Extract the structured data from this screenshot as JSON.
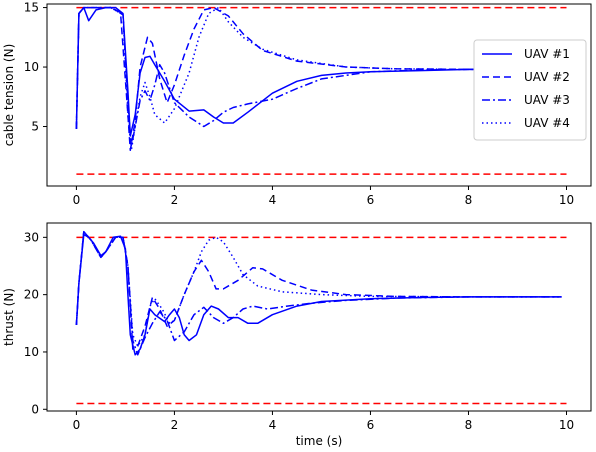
{
  "chart_data": [
    {
      "type": "line",
      "ylabel": "cable tension (N)",
      "xlabel": "",
      "xlim": [
        -0.6,
        10.5
      ],
      "ylim": [
        0,
        15.3
      ],
      "xticks": [
        "0",
        "2",
        "4",
        "6",
        "8",
        "10"
      ],
      "yticks": [
        "5",
        "10",
        "15"
      ],
      "legend": {
        "position": "right",
        "entries": [
          "UAV #1",
          "UAV #2",
          "UAV #3",
          "UAV #4"
        ]
      },
      "limits": [
        {
          "y": 15,
          "x": [
            0,
            10
          ],
          "color": "#ff0000",
          "style": "dashed"
        },
        {
          "y": 1,
          "x": [
            0,
            10
          ],
          "color": "#ff0000",
          "style": "dashed"
        }
      ],
      "series": [
        {
          "name": "UAV #1",
          "color": "#0000ff",
          "style": "solid",
          "points": [
            [
              0,
              4.8
            ],
            [
              0.05,
              14.5
            ],
            [
              0.15,
              15.0
            ],
            [
              0.25,
              13.9
            ],
            [
              0.4,
              14.8
            ],
            [
              0.6,
              15.0
            ],
            [
              0.8,
              15.0
            ],
            [
              0.95,
              14.5
            ],
            [
              1.05,
              8.0
            ],
            [
              1.1,
              4.2
            ],
            [
              1.2,
              6.0
            ],
            [
              1.3,
              9.5
            ],
            [
              1.4,
              10.8
            ],
            [
              1.5,
              10.9
            ],
            [
              1.6,
              10.2
            ],
            [
              1.8,
              8.8
            ],
            [
              2.0,
              7.3
            ],
            [
              2.3,
              6.3
            ],
            [
              2.6,
              6.4
            ],
            [
              2.8,
              5.8
            ],
            [
              3.0,
              5.3
            ],
            [
              3.2,
              5.3
            ],
            [
              3.5,
              6.2
            ],
            [
              4.0,
              7.8
            ],
            [
              4.5,
              8.8
            ],
            [
              5.0,
              9.3
            ],
            [
              5.5,
              9.5
            ],
            [
              6.0,
              9.6
            ],
            [
              7.0,
              9.7
            ],
            [
              8.0,
              9.8
            ],
            [
              9.0,
              9.8
            ]
          ]
        },
        {
          "name": "UAV #2",
          "color": "#0000ff",
          "style": "dashed",
          "points": [
            [
              0,
              4.8
            ],
            [
              0.05,
              14.5
            ],
            [
              0.15,
              15.0
            ],
            [
              0.4,
              15.0
            ],
            [
              0.7,
              15.0
            ],
            [
              0.9,
              14.6
            ],
            [
              1.05,
              6.0
            ],
            [
              1.1,
              3.0
            ],
            [
              1.2,
              5.5
            ],
            [
              1.3,
              10.0
            ],
            [
              1.45,
              12.5
            ],
            [
              1.55,
              12.0
            ],
            [
              1.7,
              9.0
            ],
            [
              1.85,
              7.0
            ],
            [
              2.0,
              8.5
            ],
            [
              2.2,
              11.0
            ],
            [
              2.4,
              13.2
            ],
            [
              2.6,
              14.8
            ],
            [
              2.8,
              15.0
            ],
            [
              3.1,
              14.3
            ],
            [
              3.4,
              12.8
            ],
            [
              3.8,
              11.4
            ],
            [
              4.5,
              10.5
            ],
            [
              5.5,
              10.0
            ],
            [
              6.5,
              9.85
            ],
            [
              8.0,
              9.8
            ],
            [
              9.0,
              9.8
            ]
          ]
        },
        {
          "name": "UAV #3",
          "color": "#0000ff",
          "style": "dashdot",
          "points": [
            [
              0,
              4.8
            ],
            [
              0.05,
              14.5
            ],
            [
              0.15,
              15.0
            ],
            [
              0.4,
              15.0
            ],
            [
              0.7,
              15.0
            ],
            [
              0.95,
              14.4
            ],
            [
              1.05,
              7.0
            ],
            [
              1.12,
              3.3
            ],
            [
              1.2,
              5.0
            ],
            [
              1.3,
              7.2
            ],
            [
              1.4,
              8.0
            ],
            [
              1.5,
              7.2
            ],
            [
              1.6,
              8.5
            ],
            [
              1.7,
              10.2
            ],
            [
              1.8,
              9.5
            ],
            [
              2.0,
              7.0
            ],
            [
              2.3,
              5.8
            ],
            [
              2.6,
              5.0
            ],
            [
              2.8,
              5.5
            ],
            [
              3.0,
              6.2
            ],
            [
              3.2,
              6.6
            ],
            [
              3.5,
              6.9
            ],
            [
              4.0,
              7.3
            ],
            [
              4.5,
              8.2
            ],
            [
              5.0,
              9.0
            ],
            [
              6.0,
              9.6
            ],
            [
              7.0,
              9.75
            ],
            [
              8.0,
              9.8
            ],
            [
              9.0,
              9.8
            ]
          ]
        },
        {
          "name": "UAV #4",
          "color": "#0000ff",
          "style": "dotted",
          "points": [
            [
              0,
              4.8
            ],
            [
              0.05,
              14.5
            ],
            [
              0.15,
              15.0
            ],
            [
              0.4,
              15.0
            ],
            [
              0.7,
              15.0
            ],
            [
              0.95,
              14.4
            ],
            [
              1.05,
              6.0
            ],
            [
              1.12,
              3.0
            ],
            [
              1.2,
              5.0
            ],
            [
              1.3,
              7.5
            ],
            [
              1.4,
              8.7
            ],
            [
              1.5,
              7.5
            ],
            [
              1.6,
              6.0
            ],
            [
              1.8,
              5.3
            ],
            [
              2.0,
              6.5
            ],
            [
              2.3,
              9.5
            ],
            [
              2.5,
              12.5
            ],
            [
              2.7,
              14.5
            ],
            [
              2.9,
              15.0
            ],
            [
              3.1,
              13.8
            ],
            [
              3.4,
              12.5
            ],
            [
              3.8,
              11.5
            ],
            [
              4.5,
              10.6
            ],
            [
              5.5,
              10.0
            ],
            [
              6.5,
              9.85
            ],
            [
              8.0,
              9.8
            ],
            [
              9.0,
              9.8
            ]
          ]
        }
      ]
    },
    {
      "type": "line",
      "ylabel": "thrust (N)",
      "xlabel": "time (s)",
      "xlim": [
        -0.6,
        10.5
      ],
      "ylim": [
        -0.3,
        32.5
      ],
      "xticks": [
        "0",
        "2",
        "4",
        "6",
        "8",
        "10"
      ],
      "yticks": [
        "0",
        "10",
        "20",
        "30"
      ],
      "limits": [
        {
          "y": 30,
          "x": [
            0,
            10
          ],
          "color": "#ff0000",
          "style": "dashed"
        },
        {
          "y": 1,
          "x": [
            0,
            10
          ],
          "color": "#ff0000",
          "style": "dashed"
        }
      ],
      "series": [
        {
          "name": "UAV #1",
          "color": "#0000ff",
          "style": "solid",
          "points": [
            [
              0,
              14.7
            ],
            [
              0.05,
              22.0
            ],
            [
              0.15,
              30.5
            ],
            [
              0.25,
              30.0
            ],
            [
              0.35,
              29.0
            ],
            [
              0.5,
              26.8
            ],
            [
              0.6,
              27.5
            ],
            [
              0.75,
              30.0
            ],
            [
              0.9,
              30.2
            ],
            [
              1.0,
              28.0
            ],
            [
              1.05,
              20.0
            ],
            [
              1.1,
              13.0
            ],
            [
              1.2,
              9.5
            ],
            [
              1.3,
              10.5
            ],
            [
              1.4,
              13.0
            ],
            [
              1.5,
              17.5
            ],
            [
              1.6,
              16.5
            ],
            [
              1.8,
              15.3
            ],
            [
              1.9,
              16.5
            ],
            [
              2.0,
              17.5
            ],
            [
              2.1,
              16.0
            ],
            [
              2.2,
              13.0
            ],
            [
              2.3,
              12.0
            ],
            [
              2.45,
              13.0
            ],
            [
              2.6,
              16.5
            ],
            [
              2.75,
              18.0
            ],
            [
              2.9,
              17.5
            ],
            [
              3.1,
              16.0
            ],
            [
              3.3,
              16.0
            ],
            [
              3.5,
              15.0
            ],
            [
              3.7,
              15.0
            ],
            [
              4.0,
              16.5
            ],
            [
              4.5,
              18.0
            ],
            [
              5.0,
              18.8
            ],
            [
              6.0,
              19.3
            ],
            [
              7.0,
              19.5
            ],
            [
              8.0,
              19.6
            ],
            [
              9.0,
              19.6
            ],
            [
              9.9,
              19.6
            ]
          ]
        },
        {
          "name": "UAV #2",
          "color": "#0000ff",
          "style": "dashed",
          "points": [
            [
              0,
              14.7
            ],
            [
              0.05,
              22.0
            ],
            [
              0.15,
              31.0
            ],
            [
              0.3,
              29.5
            ],
            [
              0.5,
              26.5
            ],
            [
              0.6,
              27.5
            ],
            [
              0.8,
              30.0
            ],
            [
              0.95,
              30.0
            ],
            [
              1.05,
              25.0
            ],
            [
              1.15,
              10.5
            ],
            [
              1.25,
              11.0
            ],
            [
              1.4,
              14.5
            ],
            [
              1.55,
              19.5
            ],
            [
              1.7,
              17.5
            ],
            [
              1.85,
              14.5
            ],
            [
              2.0,
              15.5
            ],
            [
              2.2,
              20.0
            ],
            [
              2.4,
              24.0
            ],
            [
              2.55,
              26.0
            ],
            [
              2.7,
              24.0
            ],
            [
              2.85,
              21.0
            ],
            [
              3.0,
              21.0
            ],
            [
              3.3,
              22.5
            ],
            [
              3.6,
              24.7
            ],
            [
              3.8,
              24.5
            ],
            [
              4.2,
              22.5
            ],
            [
              4.8,
              20.8
            ],
            [
              5.5,
              20.0
            ],
            [
              6.5,
              19.7
            ],
            [
              8.0,
              19.6
            ],
            [
              9.9,
              19.6
            ]
          ]
        },
        {
          "name": "UAV #3",
          "color": "#0000ff",
          "style": "dashdot",
          "points": [
            [
              0,
              14.7
            ],
            [
              0.05,
              22.0
            ],
            [
              0.15,
              31.0
            ],
            [
              0.3,
              29.5
            ],
            [
              0.5,
              26.5
            ],
            [
              0.6,
              27.5
            ],
            [
              0.8,
              30.0
            ],
            [
              0.95,
              30.0
            ],
            [
              1.05,
              25.0
            ],
            [
              1.15,
              12.0
            ],
            [
              1.25,
              9.5
            ],
            [
              1.4,
              12.5
            ],
            [
              1.55,
              15.0
            ],
            [
              1.7,
              17.0
            ],
            [
              1.85,
              15.5
            ],
            [
              2.0,
              12.0
            ],
            [
              2.2,
              13.5
            ],
            [
              2.4,
              16.5
            ],
            [
              2.6,
              17.8
            ],
            [
              2.8,
              16.0
            ],
            [
              3.0,
              15.0
            ],
            [
              3.2,
              16.0
            ],
            [
              3.4,
              17.5
            ],
            [
              3.6,
              18.0
            ],
            [
              3.9,
              17.5
            ],
            [
              4.3,
              18.0
            ],
            [
              4.8,
              18.5
            ],
            [
              5.5,
              19.0
            ],
            [
              6.5,
              19.4
            ],
            [
              8.0,
              19.6
            ],
            [
              9.9,
              19.6
            ]
          ]
        },
        {
          "name": "UAV #4",
          "color": "#0000ff",
          "style": "dotted",
          "points": [
            [
              0,
              14.7
            ],
            [
              0.05,
              22.0
            ],
            [
              0.15,
              31.0
            ],
            [
              0.3,
              29.5
            ],
            [
              0.5,
              26.5
            ],
            [
              0.6,
              27.5
            ],
            [
              0.8,
              30.0
            ],
            [
              0.95,
              30.0
            ],
            [
              1.05,
              25.0
            ],
            [
              1.15,
              13.0
            ],
            [
              1.25,
              11.0
            ],
            [
              1.4,
              13.0
            ],
            [
              1.5,
              18.0
            ],
            [
              1.6,
              19.3
            ],
            [
              1.75,
              17.5
            ],
            [
              1.9,
              15.0
            ],
            [
              2.0,
              15.5
            ],
            [
              2.2,
              20.0
            ],
            [
              2.4,
              24.0
            ],
            [
              2.55,
              27.5
            ],
            [
              2.7,
              29.5
            ],
            [
              2.85,
              30.0
            ],
            [
              3.0,
              29.2
            ],
            [
              3.2,
              26.5
            ],
            [
              3.4,
              23.5
            ],
            [
              3.7,
              21.5
            ],
            [
              4.2,
              20.5
            ],
            [
              5.0,
              20.0
            ],
            [
              6.0,
              19.7
            ],
            [
              8.0,
              19.6
            ],
            [
              9.9,
              19.6
            ]
          ]
        }
      ]
    }
  ]
}
